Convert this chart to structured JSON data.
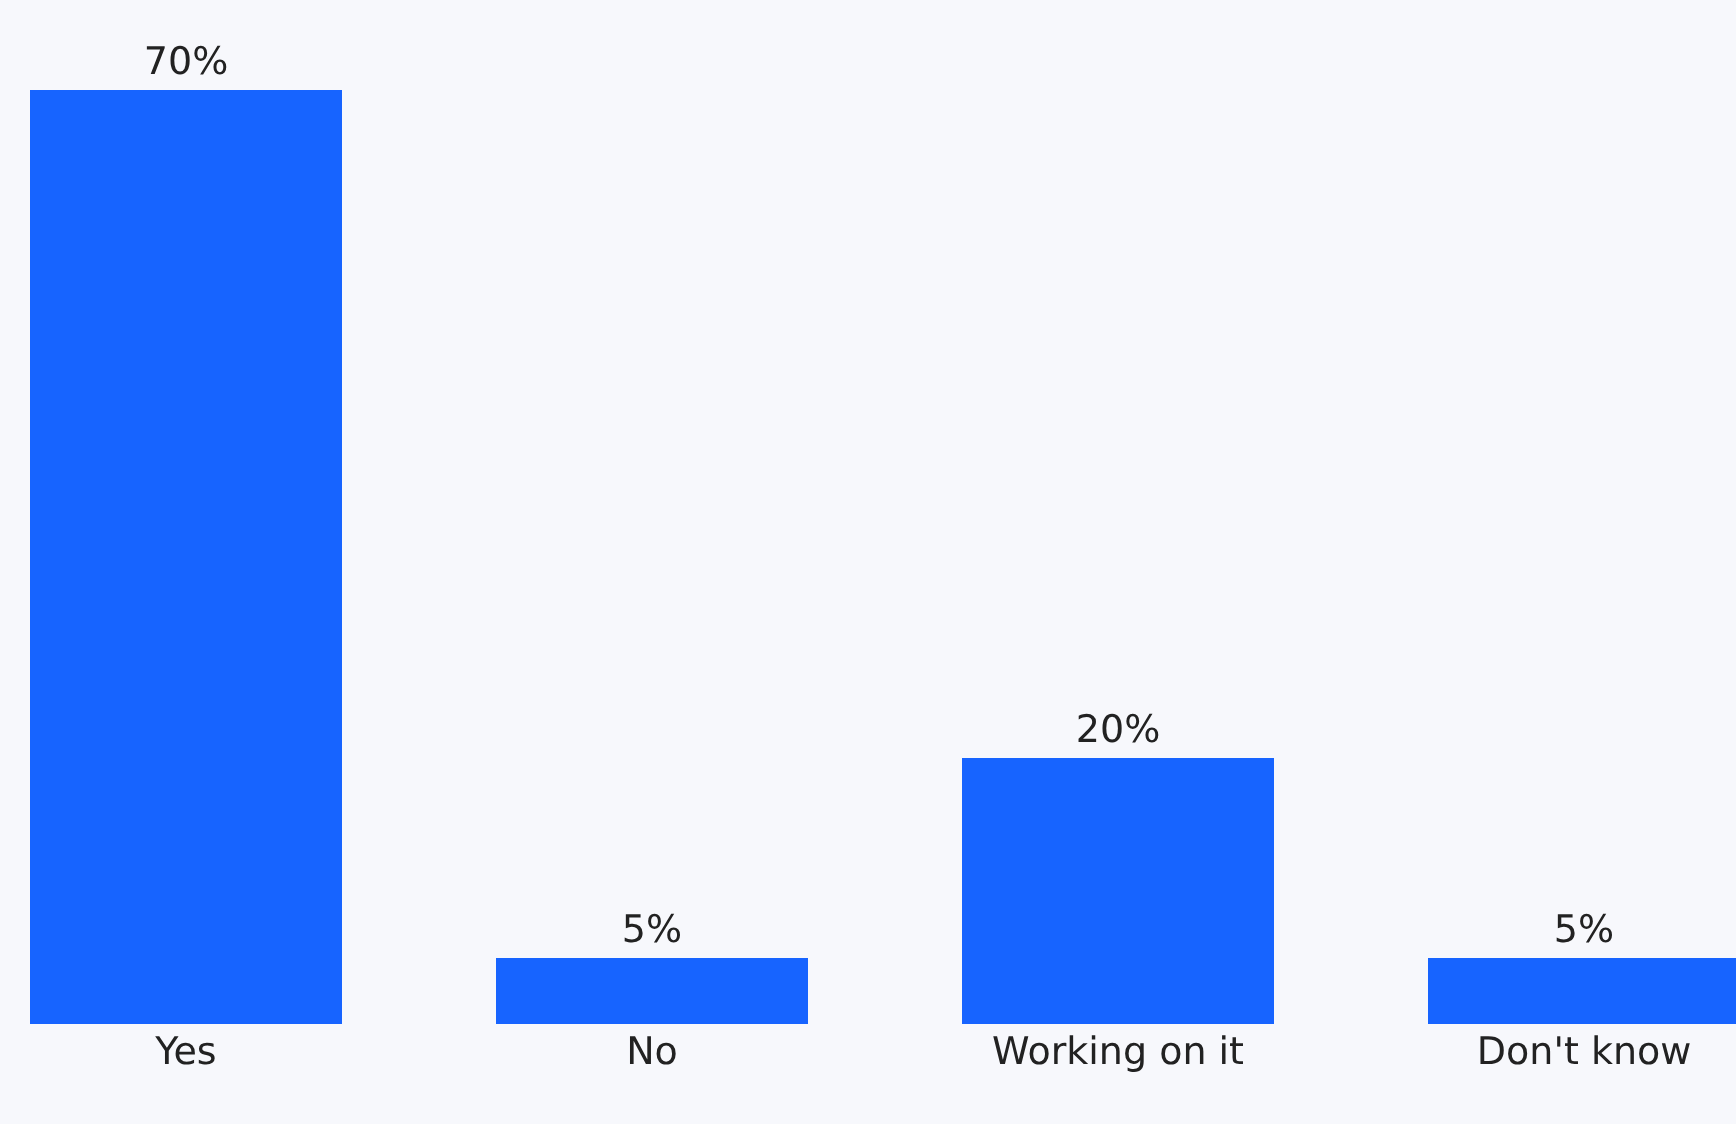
{
  "chart_data": {
    "type": "bar",
    "categories": [
      "Yes",
      "No",
      "Working on it",
      "Don't know"
    ],
    "values": [
      70,
      5,
      20,
      5
    ],
    "value_labels": [
      "70%",
      "5%",
      "20%",
      "5%"
    ],
    "color": "#1764ff",
    "grid": false,
    "legend": false
  }
}
